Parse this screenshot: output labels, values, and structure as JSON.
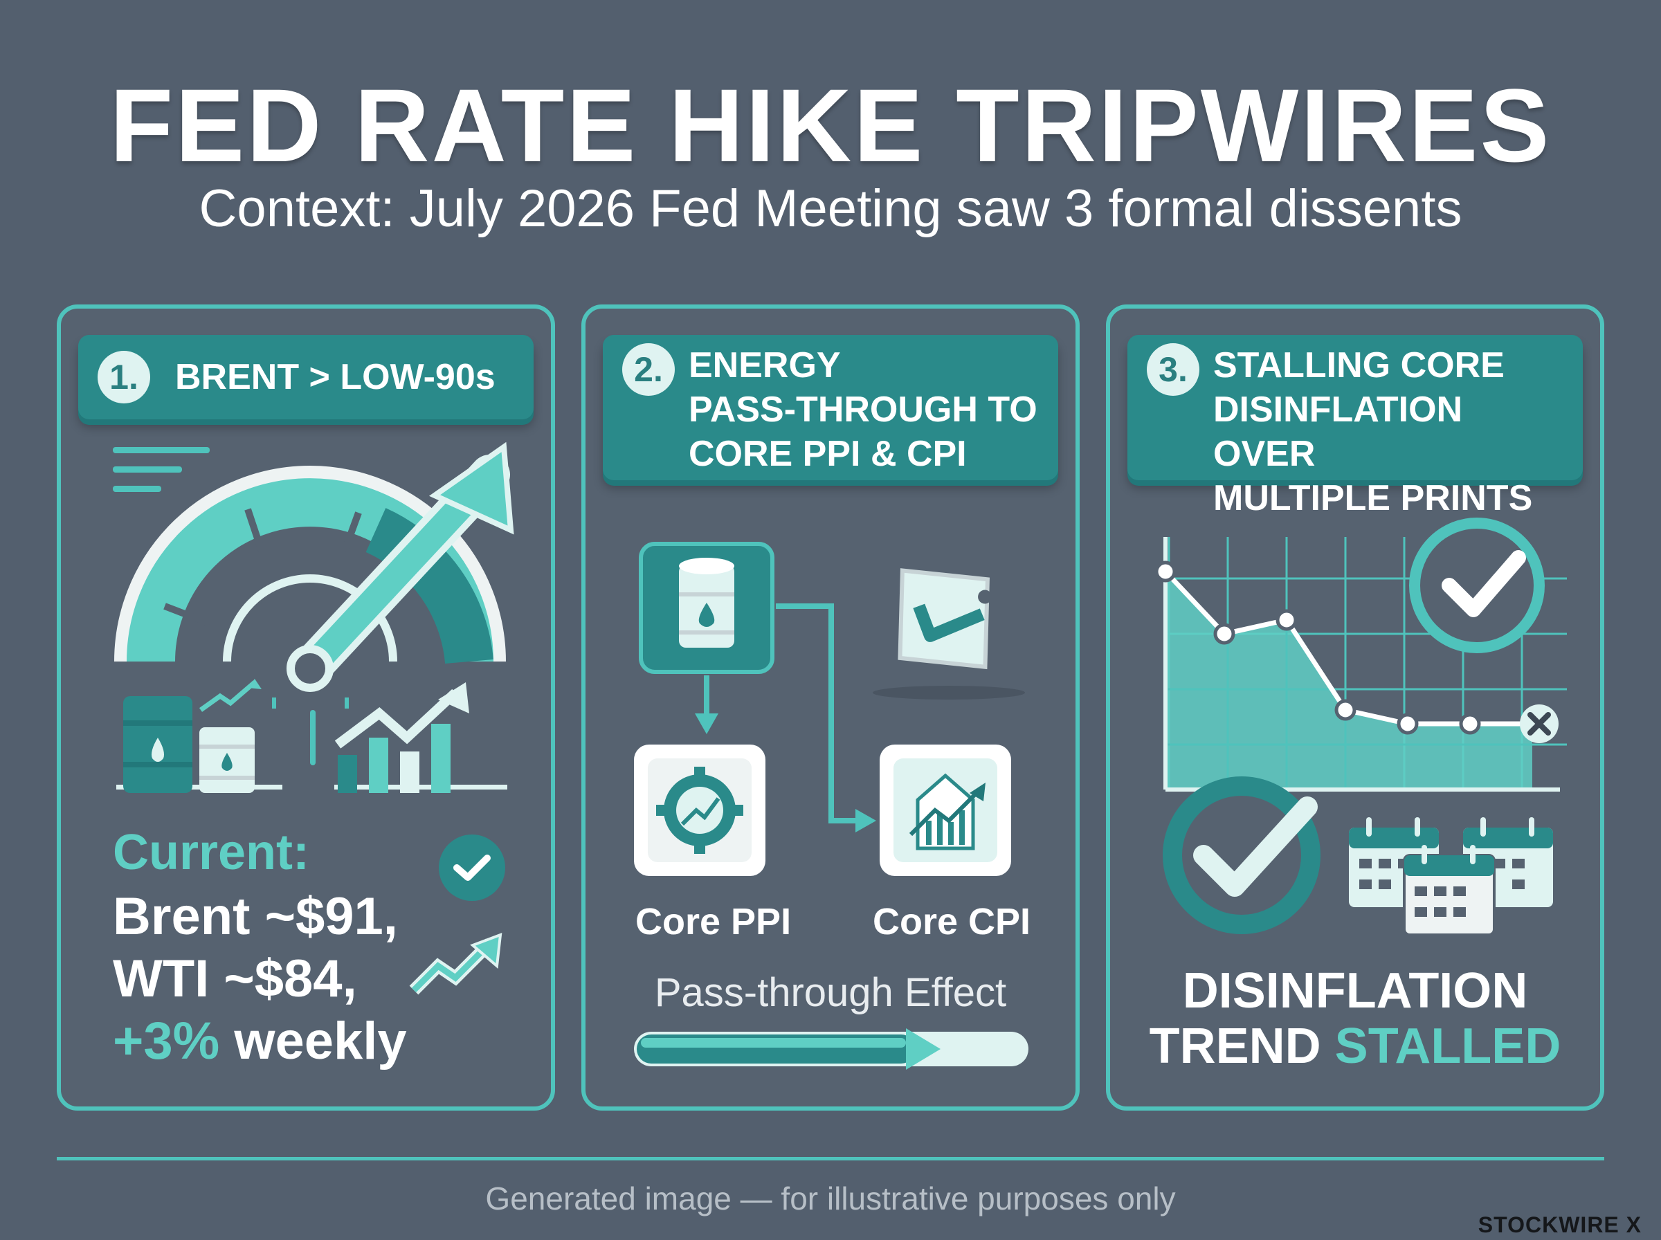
{
  "header": {
    "title": "FED RATE HIKE TRIPWIRES",
    "subtitle": "Context: July 2026 Fed Meeting saw 3 formal dissents"
  },
  "panels": [
    {
      "number": "1.",
      "heading": "BRENT > LOW-90s",
      "current_label": "Current:",
      "line1": "Brent ~$91,",
      "line2": "WTI ~$84,",
      "line3_accent": "+3%",
      "line3_rest": " weekly",
      "icons": [
        "gauge-icon",
        "oil-barrel-icon",
        "rising-chart-icon",
        "check-icon"
      ]
    },
    {
      "number": "2.",
      "heading": "ENERGY\nPASS-THROUGH TO\nCORE PPI & CPI",
      "node_ppi": "Core PPI",
      "node_cpi": "Core CPI",
      "pass_label": "Pass-through Effect",
      "pass_progress": 0.72,
      "icons": [
        "oil-barrel-icon",
        "price-tag-icon",
        "gear-icon",
        "tag-chart-icon"
      ]
    },
    {
      "number": "3.",
      "heading": "STALLING CORE\nDISINFLATION OVER\nMULTIPLE PRINTS",
      "trend_line1": "DISINFLATION",
      "trend_line2_plain": "TREND ",
      "trend_line2_accent": "STALLED",
      "icons": [
        "line-chart-icon",
        "check-circle-icon",
        "calendar-icon",
        "x-icon"
      ]
    }
  ],
  "footer": {
    "disclaimer": "Generated image — for illustrative purposes only",
    "brand": "STOCKWIRE X"
  },
  "colors": {
    "background": "#535f6e",
    "accent": "#4fc3bc",
    "header_fill": "#2a8a8a"
  }
}
